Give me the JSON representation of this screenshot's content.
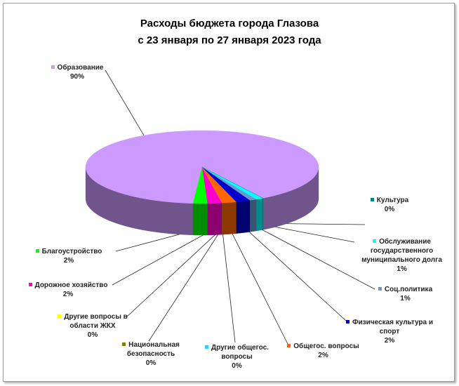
{
  "chart_data": {
    "type": "pie3d",
    "title": "Расходы бюджета города Глазова",
    "subtitle": "с 23 января по 27 января 2023 года",
    "categories": [
      "Образование",
      "Благоустройство",
      "Дорожное хозяйство",
      "Другие вопросы в области ЖКХ",
      "Национальная безопасность",
      "Другие общегос. вопросы",
      "Общегос. вопросы",
      "Физическая культура и спорт",
      "Соц.политика",
      "Обслуживание государственного муниципального долга",
      "Культура"
    ],
    "values": [
      90,
      2,
      2,
      0,
      0,
      0,
      2,
      2,
      1,
      1,
      0
    ],
    "value_labels": [
      "90%",
      "2%",
      "2%",
      "0%",
      "0%",
      "0%",
      "2%",
      "2%",
      "1%",
      "1%",
      "0%"
    ],
    "colors": [
      "#cc99ff",
      "#00ff00",
      "#ff00cc",
      "#ffff00",
      "#808000",
      "#33ccff",
      "#ff6600",
      "#0000cc",
      "#6699cc",
      "#00ffff",
      "#008080"
    ]
  }
}
